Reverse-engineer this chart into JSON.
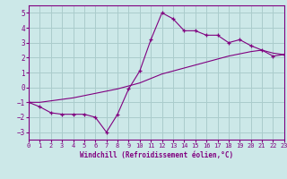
{
  "xlabel": "Windchill (Refroidissement éolien,°C)",
  "line1_x": [
    0,
    1,
    2,
    3,
    4,
    5,
    6,
    7,
    8,
    9,
    10,
    11,
    12,
    13,
    14,
    15,
    16,
    17,
    18,
    19,
    20,
    21,
    22,
    23
  ],
  "line1_y": [
    -1.0,
    -1.3,
    -1.7,
    -1.8,
    -1.8,
    -1.8,
    -2.0,
    -3.0,
    -1.8,
    -0.1,
    1.1,
    3.2,
    5.0,
    4.6,
    3.8,
    3.8,
    3.5,
    3.5,
    3.0,
    3.2,
    2.8,
    2.5,
    2.1,
    2.2
  ],
  "line2_x": [
    0,
    1,
    2,
    3,
    4,
    5,
    6,
    7,
    8,
    9,
    10,
    11,
    12,
    13,
    14,
    15,
    16,
    17,
    18,
    19,
    20,
    21,
    22,
    23
  ],
  "line2_y": [
    -1.0,
    -1.0,
    -0.9,
    -0.8,
    -0.7,
    -0.55,
    -0.4,
    -0.25,
    -0.1,
    0.1,
    0.3,
    0.6,
    0.9,
    1.1,
    1.3,
    1.5,
    1.7,
    1.9,
    2.1,
    2.25,
    2.4,
    2.5,
    2.3,
    2.2
  ],
  "line_color": "#800080",
  "bg_color": "#cce8e8",
  "grid_color": "#aacccc",
  "axis_color": "#800080",
  "tick_color": "#800080",
  "marker": "+",
  "xlim": [
    0,
    23
  ],
  "ylim": [
    -3.5,
    5.5
  ],
  "xticks": [
    0,
    1,
    2,
    3,
    4,
    5,
    6,
    7,
    8,
    9,
    10,
    11,
    12,
    13,
    14,
    15,
    16,
    17,
    18,
    19,
    20,
    21,
    22,
    23
  ],
  "yticks": [
    -3,
    -2,
    -1,
    0,
    1,
    2,
    3,
    4,
    5
  ],
  "xlabel_fontsize": 5.5,
  "tick_fontsize": 5.0
}
